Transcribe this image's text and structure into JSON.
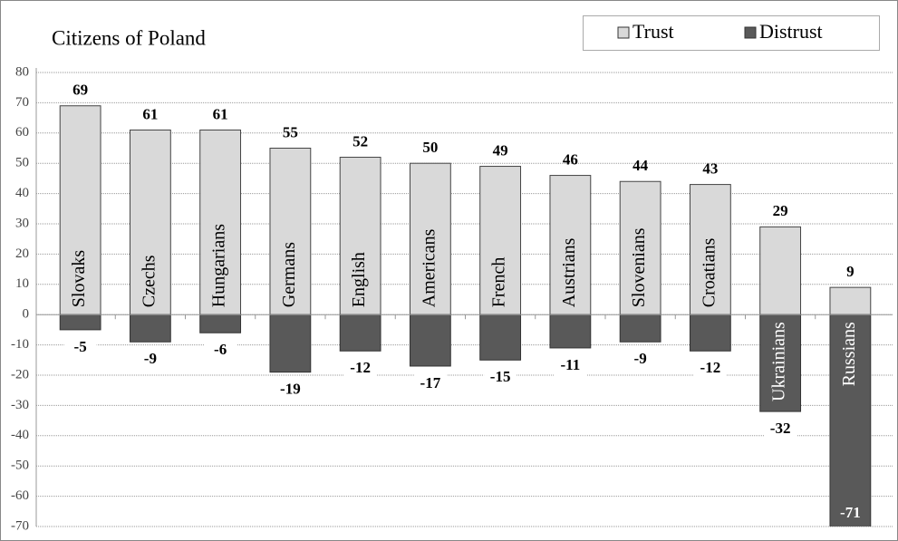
{
  "chart_data": {
    "type": "bar",
    "title": "Citizens of Poland",
    "categories": [
      "Slovaks",
      "Czechs",
      "Hungarians",
      "Germans",
      "English",
      "Americans",
      "French",
      "Austrians",
      "Slovenians",
      "Croatians",
      "Ukrainians",
      "Russians"
    ],
    "series": [
      {
        "name": "Trust",
        "color": "#d9d9d9",
        "values": [
          69,
          61,
          61,
          55,
          52,
          50,
          49,
          46,
          44,
          43,
          29,
          9
        ]
      },
      {
        "name": "Distrust",
        "color": "#595959",
        "values": [
          -5,
          -9,
          -6,
          -19,
          -12,
          -17,
          -15,
          -11,
          -9,
          -12,
          -32,
          -71
        ]
      }
    ],
    "ylim": [
      -70,
      80
    ],
    "yticks": [
      -70,
      -60,
      -50,
      -40,
      -30,
      -20,
      -10,
      0,
      10,
      20,
      30,
      40,
      50,
      60,
      70,
      80
    ],
    "grid": true,
    "legend": "top-right"
  }
}
